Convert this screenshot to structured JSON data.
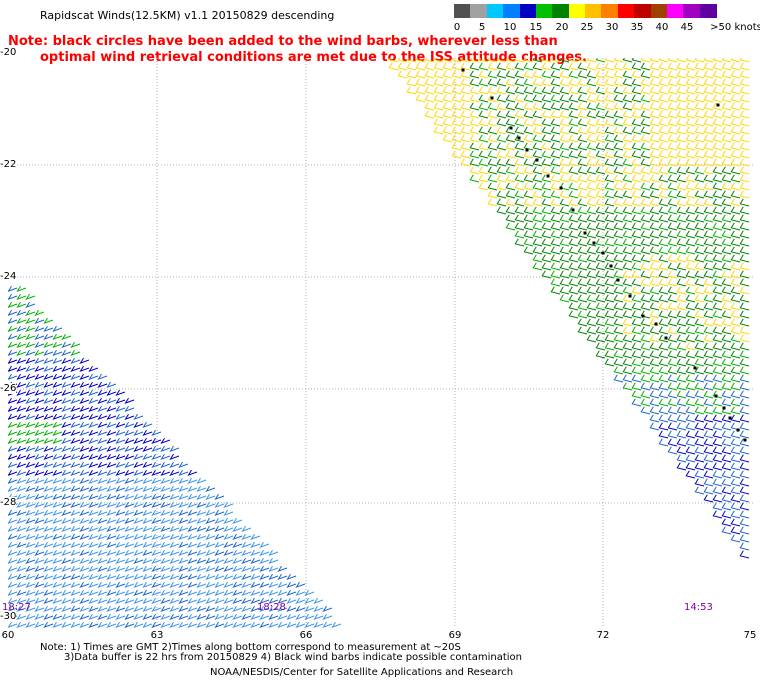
{
  "header": {
    "title": "Rapidscat Winds(12.5KM) v1.1 20150829 descending",
    "note_line1": "Note: black circles have been added to the wind barbs, wherever less than",
    "note_line2": "optimal wind retrieval conditions are met due to the ISS attitude changes."
  },
  "legend": {
    "swatches": [
      "#505050",
      "#a0a0a0",
      "#00c8ff",
      "#0080ff",
      "#0000c0",
      "#00c000",
      "#008000",
      "#ffff00",
      "#ffc000",
      "#ff8000",
      "#ff0000",
      "#c00000",
      "#a04000",
      "#ff00ff",
      "#a000c0",
      "#6000a0"
    ],
    "labels": [
      "0",
      "5",
      "10",
      "15",
      "20",
      "25",
      "30",
      "35",
      "40",
      "45",
      ">50 knots"
    ]
  },
  "map": {
    "lat_labels": [
      "-20",
      "-22",
      "-24",
      "-26",
      "-28",
      "-30"
    ],
    "lon_labels": [
      "60",
      "63",
      "66",
      "69",
      "72",
      "75"
    ],
    "time_labels": [
      "18:27",
      "18:28",
      "14:53"
    ],
    "colors": {
      "grid": "#b0b0b0",
      "barb_yellow": "#ffd700",
      "barb_green_dark": "#008000",
      "barb_green": "#00b000",
      "barb_blue": "#1e64c8",
      "barb_blue_light": "#3c96e6",
      "barb_blue_dark": "#0000c0",
      "contamination": "#000000"
    }
  },
  "footer": {
    "line1": "Note: 1) Times are GMT 2)Times along bottom correspond to measurement at ~20S",
    "line2": "3)Data buffer is 22 hrs from 20150829 4) Black wind barbs indicate possible contamination",
    "line3": "NOAA/NESDIS/Center for Satellite Applications and Research"
  }
}
